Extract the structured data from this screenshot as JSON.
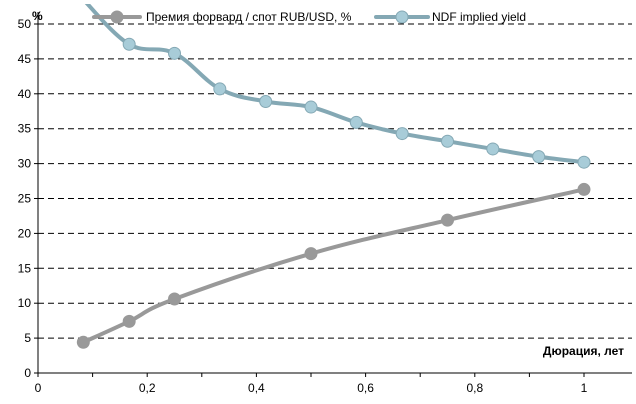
{
  "chart_data": {
    "type": "line",
    "ylabel": "%",
    "xlabel": "Дюрация, лет",
    "xlim": [
      0,
      1.1
    ],
    "ylim": [
      0,
      50
    ],
    "x_ticks": [
      0,
      0.2,
      0.4,
      0.6,
      0.8,
      1
    ],
    "x_tick_labels": [
      "0",
      "0,2",
      "0,4",
      "0,6",
      "0,8",
      "1"
    ],
    "y_ticks": [
      0,
      5,
      10,
      15,
      20,
      25,
      30,
      35,
      40,
      45,
      50
    ],
    "y_tick_labels": [
      "0",
      "5",
      "10",
      "15",
      "20",
      "25",
      "30",
      "35",
      "40",
      "45",
      "50"
    ],
    "grid": "horizontal dashed",
    "legend_position": "top",
    "series": [
      {
        "name": "Премия форвард / спот RUB/USD, %",
        "color": "#999999",
        "points": [
          {
            "x": 0.083,
            "y": 4.4
          },
          {
            "x": 0.167,
            "y": 7.4
          },
          {
            "x": 0.25,
            "y": 10.6
          },
          {
            "x": 0.5,
            "y": 17.1
          },
          {
            "x": 0.75,
            "y": 21.9
          },
          {
            "x": 1.0,
            "y": 26.3
          }
        ]
      },
      {
        "name": "NDF implied yield",
        "color": "#84A8B4",
        "marker_color": "#A8CCD8",
        "points": [
          {
            "x": 0.083,
            "y": 53.5
          },
          {
            "x": 0.167,
            "y": 47.1
          },
          {
            "x": 0.25,
            "y": 45.8
          },
          {
            "x": 0.333,
            "y": 40.7
          },
          {
            "x": 0.417,
            "y": 38.9
          },
          {
            "x": 0.5,
            "y": 38.1
          },
          {
            "x": 0.583,
            "y": 35.9
          },
          {
            "x": 0.667,
            "y": 34.3
          },
          {
            "x": 0.75,
            "y": 33.2
          },
          {
            "x": 0.833,
            "y": 32.1
          },
          {
            "x": 0.917,
            "y": 31.0
          },
          {
            "x": 1.0,
            "y": 30.2
          }
        ]
      }
    ]
  }
}
